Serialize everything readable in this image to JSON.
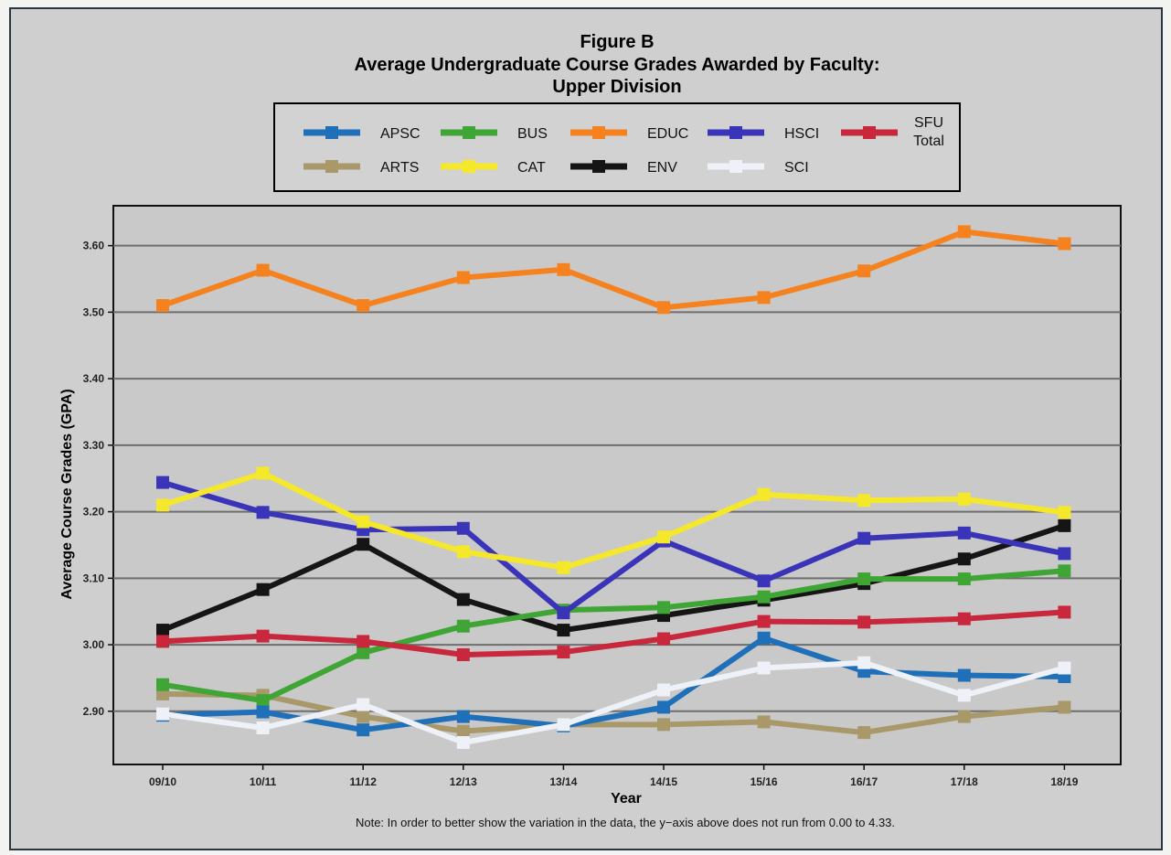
{
  "chart_data": {
    "type": "line",
    "title": [
      "Figure B",
      "Average Undergraduate Course Grades Awarded by Faculty:",
      "Upper Division"
    ],
    "xlabel": "Year",
    "ylabel": "Average Course Grades (GPA)",
    "note": "Note: In order to better show the variation in the data, the y−axis above does not run from 0.00 to 4.33.",
    "ylim": [
      2.82,
      3.66
    ],
    "yticks": [
      2.9,
      3.0,
      3.1,
      3.2,
      3.3,
      3.4,
      3.5,
      3.6
    ],
    "yticklabels": [
      "2.90",
      "3.00",
      "3.10",
      "3.20",
      "3.30",
      "3.40",
      "3.50",
      "3.60"
    ],
    "grid": true,
    "legend_position": "top",
    "categories": [
      "09/10",
      "10/11",
      "11/12",
      "12/13",
      "13/14",
      "14/15",
      "15/16",
      "16/17",
      "17/18",
      "18/19"
    ],
    "series": [
      {
        "name": "APSC",
        "color": "#1f6fb9",
        "values": [
          2.894,
          2.899,
          2.872,
          2.892,
          2.878,
          2.906,
          3.01,
          2.96,
          2.954,
          2.952
        ]
      },
      {
        "name": "BUS",
        "color": "#3fa535",
        "values": [
          2.94,
          2.916,
          2.988,
          3.028,
          3.052,
          3.056,
          3.072,
          3.099,
          3.099,
          3.111
        ]
      },
      {
        "name": "EDUC",
        "color": "#f5821f",
        "values": [
          3.51,
          3.563,
          3.51,
          3.552,
          3.564,
          3.507,
          3.522,
          3.562,
          3.621,
          3.603
        ]
      },
      {
        "name": "HSCI",
        "color": "#3a35b8",
        "values": [
          3.244,
          3.199,
          3.173,
          3.175,
          3.048,
          3.156,
          3.096,
          3.16,
          3.168,
          3.137
        ]
      },
      {
        "name": "SFU Total",
        "label_lines": [
          "SFU",
          "Total"
        ],
        "color": "#c8273c",
        "values": [
          3.005,
          3.013,
          3.005,
          2.985,
          2.989,
          3.009,
          3.035,
          3.034,
          3.039,
          3.049
        ]
      },
      {
        "name": "ARTS",
        "color": "#a8986a",
        "values": [
          2.926,
          2.924,
          2.892,
          2.87,
          2.88,
          2.88,
          2.884,
          2.868,
          2.892,
          2.906
        ]
      },
      {
        "name": "CAT",
        "color": "#f5e82a",
        "values": [
          3.21,
          3.258,
          3.185,
          3.14,
          3.116,
          3.162,
          3.226,
          3.217,
          3.219,
          3.199
        ]
      },
      {
        "name": "ENV",
        "color": "#151515",
        "values": [
          3.022,
          3.083,
          3.151,
          3.068,
          3.022,
          3.044,
          3.067,
          3.092,
          3.129,
          3.179
        ]
      },
      {
        "name": "SCI",
        "color": "#eef1f7",
        "values": [
          2.896,
          2.875,
          2.91,
          2.853,
          2.88,
          2.932,
          2.965,
          2.973,
          2.924,
          2.965
        ]
      }
    ]
  }
}
